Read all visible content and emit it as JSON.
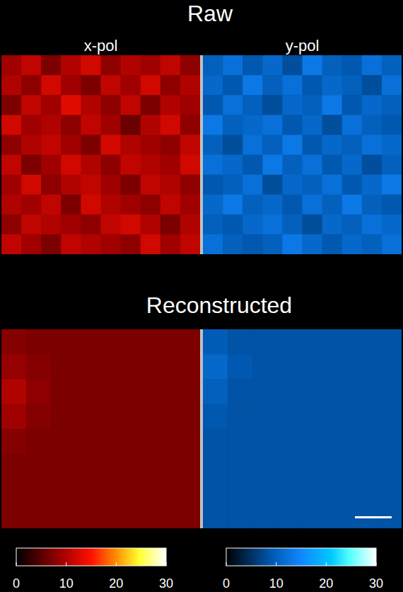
{
  "chart_data": [
    {
      "type": "heatmap",
      "title": "Raw",
      "tick_labels": false,
      "series": [
        {
          "name": "x-pol",
          "color": "#ff0000",
          "cells": [
            [
              9,
              11,
              7,
              10,
              12,
              8,
              10,
              9,
              11,
              8
            ],
            [
              10,
              8,
              12,
              9,
              7,
              11,
              9,
              12,
              8,
              10
            ],
            [
              7,
              11,
              9,
              13,
              10,
              8,
              11,
              7,
              10,
              9
            ],
            [
              12,
              9,
              10,
              8,
              11,
              9,
              6,
              10,
              12,
              8
            ],
            [
              8,
              10,
              11,
              9,
              7,
              12,
              10,
              9,
              8,
              11
            ],
            [
              11,
              7,
              9,
              12,
              10,
              8,
              11,
              10,
              9,
              12
            ],
            [
              9,
              12,
              8,
              10,
              11,
              9,
              7,
              11,
              10,
              8
            ],
            [
              10,
              9,
              11,
              7,
              12,
              10,
              9,
              8,
              11,
              9
            ],
            [
              8,
              11,
              10,
              9,
              8,
              11,
              12,
              10,
              7,
              10
            ],
            [
              11,
              9,
              7,
              11,
              10,
              9,
              8,
              12,
              9,
              11
            ]
          ]
        },
        {
          "name": "y-pol",
          "color": "#1e90ff",
          "cells": [
            [
              10,
              12,
              9,
              11,
              8,
              13,
              10,
              9,
              12,
              10
            ],
            [
              11,
              9,
              13,
              10,
              12,
              9,
              11,
              10,
              8,
              12
            ],
            [
              9,
              12,
              10,
              8,
              11,
              10,
              13,
              9,
              11,
              10
            ],
            [
              13,
              10,
              11,
              12,
              9,
              11,
              8,
              12,
              10,
              9
            ],
            [
              10,
              8,
              12,
              10,
              13,
              9,
              11,
              10,
              12,
              11
            ],
            [
              12,
              11,
              9,
              13,
              10,
              12,
              9,
              11,
              8,
              10
            ],
            [
              9,
              10,
              12,
              8,
              11,
              10,
              12,
              9,
              11,
              13
            ],
            [
              11,
              13,
              10,
              11,
              9,
              12,
              10,
              13,
              10,
              9
            ],
            [
              10,
              9,
              11,
              12,
              10,
              8,
              11,
              10,
              12,
              11
            ],
            [
              12,
              10,
              9,
              10,
              13,
              11,
              9,
              11,
              10,
              12
            ]
          ]
        }
      ]
    },
    {
      "type": "heatmap",
      "title": "Reconstructed",
      "tick_labels": false,
      "series": [
        {
          "color": "#ff0000",
          "cells": [
            [
              7.5,
              7,
              7,
              7,
              7,
              7,
              7,
              7
            ],
            [
              8.5,
              7.5,
              7,
              7,
              7,
              7,
              7,
              7
            ],
            [
              10,
              8,
              7,
              7,
              7,
              7,
              7,
              7
            ],
            [
              9,
              7.5,
              7,
              7,
              7,
              7,
              7,
              7
            ],
            [
              7.5,
              7,
              7,
              7,
              7,
              7,
              7,
              7
            ],
            [
              7,
              7,
              7,
              7,
              7,
              7,
              7,
              7
            ],
            [
              7,
              7,
              7,
              7,
              7,
              7,
              7,
              7
            ],
            [
              7,
              7,
              7,
              7,
              7,
              7,
              7,
              7
            ]
          ]
        },
        {
          "color": "#1e90ff",
          "cells": [
            [
              9.5,
              8.5,
              8.5,
              8.5,
              8.5,
              8.5,
              8.5,
              8.5
            ],
            [
              11,
              9,
              8.5,
              8.5,
              8.5,
              8.5,
              8.5,
              8.5
            ],
            [
              10,
              8.5,
              8.5,
              8.5,
              8.5,
              8.5,
              8.5,
              8.5
            ],
            [
              9,
              8.5,
              8.5,
              8.5,
              8.5,
              8.5,
              8.5,
              8.5
            ],
            [
              8.5,
              8.5,
              8.5,
              8.5,
              8.5,
              8.5,
              8.5,
              8.5
            ],
            [
              8.5,
              8.5,
              8.5,
              8.5,
              8.5,
              8.5,
              8.5,
              8.5
            ],
            [
              8.5,
              8.5,
              8.5,
              8.5,
              8.5,
              8.5,
              8.5,
              8.5
            ],
            [
              8.5,
              8.5,
              8.5,
              8.5,
              8.5,
              8.5,
              8.5,
              8.5
            ]
          ]
        }
      ]
    },
    {
      "type": "colorbar",
      "series": [
        {
          "color": "#ff0000",
          "range": [
            0,
            30
          ],
          "ticks": [
            0,
            10,
            20,
            30
          ]
        },
        {
          "color": "#1e90ff",
          "range": [
            0,
            30
          ],
          "ticks": [
            0,
            10,
            20,
            30
          ]
        }
      ]
    }
  ]
}
